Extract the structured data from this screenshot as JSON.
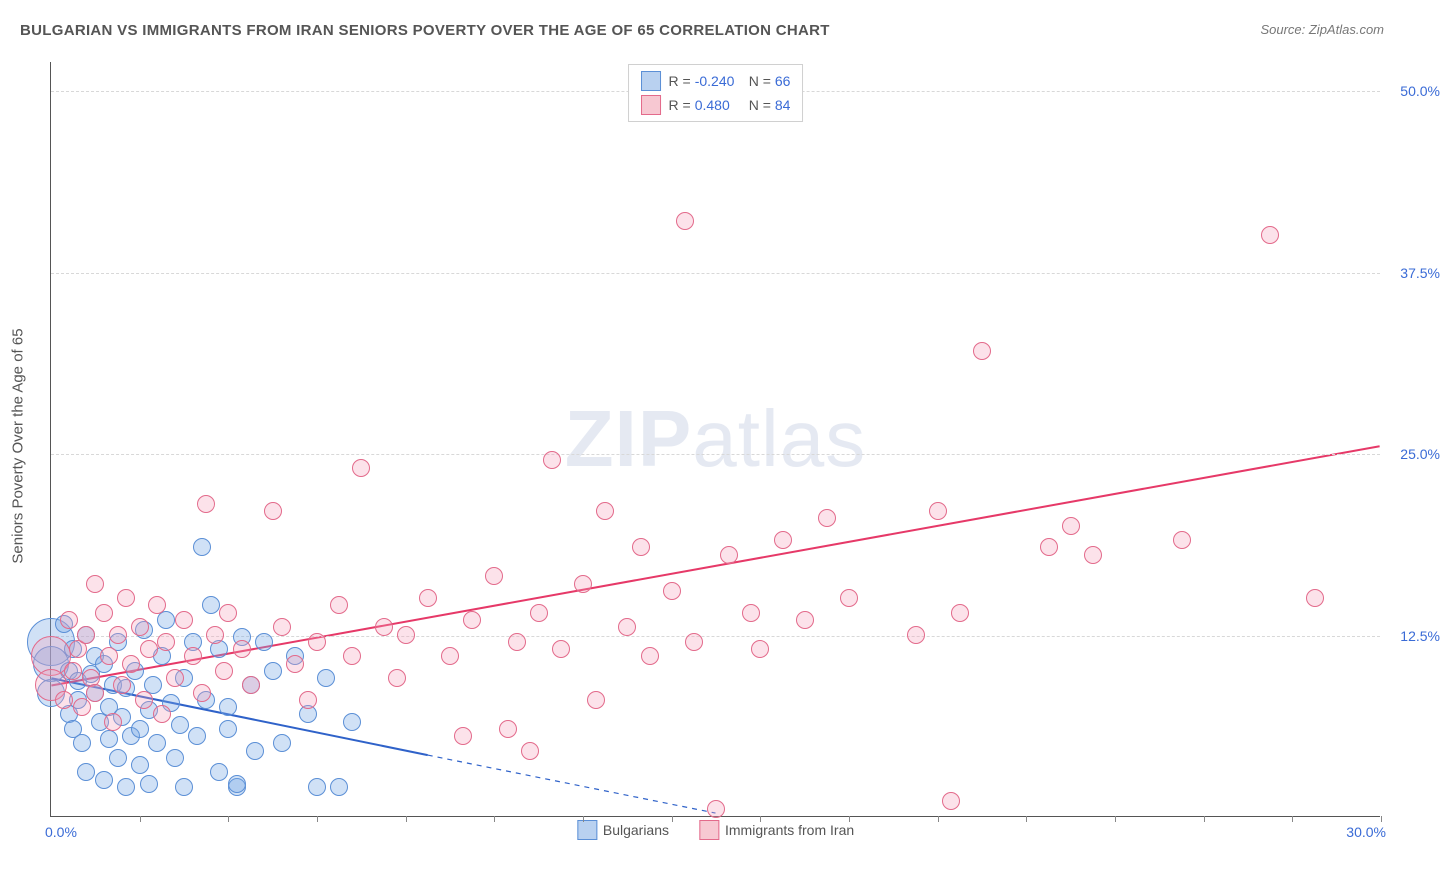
{
  "title": "BULGARIAN VS IMMIGRANTS FROM IRAN SENIORS POVERTY OVER THE AGE OF 65 CORRELATION CHART",
  "source": "Source: ZipAtlas.com",
  "ylabel": "Seniors Poverty Over the Age of 65",
  "watermark_a": "ZIP",
  "watermark_b": "atlas",
  "chart": {
    "type": "scatter",
    "xlim": [
      0,
      30
    ],
    "ylim": [
      0,
      52
    ],
    "x_tick_zero": "0.0%",
    "x_tick_max": "30.0%",
    "x_minor_ticks": [
      2,
      4,
      6,
      8,
      10,
      12,
      14,
      16,
      18,
      20,
      22,
      24,
      26,
      28,
      30
    ],
    "y_gridlines": [
      {
        "v": 12.5,
        "label": "12.5%"
      },
      {
        "v": 25.0,
        "label": "25.0%"
      },
      {
        "v": 37.5,
        "label": "37.5%"
      },
      {
        "v": 50.0,
        "label": "50.0%"
      }
    ],
    "marker_radius": 9,
    "marker_border_width": 1.5,
    "trend_line_width": 2,
    "legend_corr": [
      {
        "swatch_fill": "#b9d1f0",
        "swatch_border": "#5b8fd6",
        "r_label": "R =",
        "r": "-0.240",
        "n_label": "N =",
        "n": "66"
      },
      {
        "swatch_fill": "#f7c8d2",
        "swatch_border": "#e36a8b",
        "r_label": "R =",
        "r": " 0.480",
        "n_label": "N =",
        "n": "84"
      }
    ],
    "legend_bottom": [
      {
        "swatch_fill": "#b9d1f0",
        "swatch_border": "#5b8fd6",
        "label": "Bulgarians"
      },
      {
        "swatch_fill": "#f7c8d2",
        "swatch_border": "#e36a8b",
        "label": "Immigrants from Iran"
      }
    ],
    "series": [
      {
        "name": "Bulgarians",
        "fill": "rgba(120,170,230,0.35)",
        "border": "#5b8fd6",
        "trend_color": "#2f62c9",
        "trend": {
          "x1": 0,
          "y1": 9.5,
          "x2_solid": 8.5,
          "y2_solid": 4.2,
          "x2_dash": 15,
          "y2_dash": 0.2
        },
        "points": [
          [
            0.0,
            12.0,
            24
          ],
          [
            0.0,
            10.5,
            18
          ],
          [
            0.0,
            8.5,
            14
          ],
          [
            0.3,
            13.2
          ],
          [
            0.4,
            7.0
          ],
          [
            0.4,
            10.0
          ],
          [
            0.5,
            11.5
          ],
          [
            0.5,
            6.0
          ],
          [
            0.6,
            8.0
          ],
          [
            0.6,
            9.3
          ],
          [
            0.7,
            5.0
          ],
          [
            0.8,
            12.5
          ],
          [
            0.8,
            3.0
          ],
          [
            0.9,
            9.8
          ],
          [
            1.0,
            8.5
          ],
          [
            1.0,
            11.0
          ],
          [
            1.1,
            6.5
          ],
          [
            1.2,
            2.5
          ],
          [
            1.2,
            10.5
          ],
          [
            1.3,
            5.3
          ],
          [
            1.3,
            7.5
          ],
          [
            1.4,
            9.0
          ],
          [
            1.5,
            4.0
          ],
          [
            1.5,
            12.0
          ],
          [
            1.6,
            6.8
          ],
          [
            1.7,
            2.0
          ],
          [
            1.7,
            8.8
          ],
          [
            1.8,
            5.5
          ],
          [
            1.9,
            10.0
          ],
          [
            2.0,
            6.0
          ],
          [
            2.0,
            3.5
          ],
          [
            2.1,
            12.8
          ],
          [
            2.2,
            7.3
          ],
          [
            2.2,
            2.2
          ],
          [
            2.3,
            9.0
          ],
          [
            2.4,
            5.0
          ],
          [
            2.5,
            11.0
          ],
          [
            2.6,
            13.5
          ],
          [
            2.7,
            7.8
          ],
          [
            2.8,
            4.0
          ],
          [
            2.9,
            6.3
          ],
          [
            3.0,
            9.5
          ],
          [
            3.0,
            2.0
          ],
          [
            3.2,
            12.0
          ],
          [
            3.3,
            5.5
          ],
          [
            3.4,
            18.5
          ],
          [
            3.5,
            8.0
          ],
          [
            3.6,
            14.5
          ],
          [
            3.8,
            11.5
          ],
          [
            3.8,
            3.0
          ],
          [
            4.0,
            6.0
          ],
          [
            4.0,
            7.5
          ],
          [
            4.2,
            2.0
          ],
          [
            4.2,
            2.2
          ],
          [
            4.3,
            12.3
          ],
          [
            4.5,
            9.0
          ],
          [
            4.6,
            4.5
          ],
          [
            4.8,
            12.0
          ],
          [
            5.0,
            10.0
          ],
          [
            5.2,
            5.0
          ],
          [
            5.5,
            11.0
          ],
          [
            5.8,
            7.0
          ],
          [
            6.0,
            2.0
          ],
          [
            6.2,
            9.5
          ],
          [
            6.5,
            2.0
          ],
          [
            6.8,
            6.5
          ]
        ]
      },
      {
        "name": "Immigrants from Iran",
        "fill": "rgba(245,160,185,0.30)",
        "border": "#e36a8b",
        "trend_color": "#e63968",
        "trend": {
          "x1": 0,
          "y1": 9.0,
          "x2_solid": 30,
          "y2_solid": 25.5,
          "x2_dash": 30,
          "y2_dash": 25.5
        },
        "points": [
          [
            0.0,
            11.0,
            20
          ],
          [
            0.0,
            9.0,
            16
          ],
          [
            0.3,
            8.0
          ],
          [
            0.4,
            13.5
          ],
          [
            0.5,
            10.0
          ],
          [
            0.6,
            11.5
          ],
          [
            0.7,
            7.5
          ],
          [
            0.8,
            12.5
          ],
          [
            0.9,
            9.5
          ],
          [
            1.0,
            16.0
          ],
          [
            1.0,
            8.5
          ],
          [
            1.2,
            14.0
          ],
          [
            1.3,
            11.0
          ],
          [
            1.4,
            6.5
          ],
          [
            1.5,
            12.5
          ],
          [
            1.6,
            9.0
          ],
          [
            1.7,
            15.0
          ],
          [
            1.8,
            10.5
          ],
          [
            2.0,
            13.0
          ],
          [
            2.1,
            8.0
          ],
          [
            2.2,
            11.5
          ],
          [
            2.4,
            14.5
          ],
          [
            2.5,
            7.0
          ],
          [
            2.6,
            12.0
          ],
          [
            2.8,
            9.5
          ],
          [
            3.0,
            13.5
          ],
          [
            3.2,
            11.0
          ],
          [
            3.4,
            8.5
          ],
          [
            3.5,
            21.5
          ],
          [
            3.7,
            12.5
          ],
          [
            3.9,
            10.0
          ],
          [
            4.0,
            14.0
          ],
          [
            4.3,
            11.5
          ],
          [
            4.5,
            9.0
          ],
          [
            5.0,
            21.0
          ],
          [
            5.2,
            13.0
          ],
          [
            5.5,
            10.5
          ],
          [
            5.8,
            8.0
          ],
          [
            6.0,
            12.0
          ],
          [
            6.5,
            14.5
          ],
          [
            6.8,
            11.0
          ],
          [
            7.0,
            24.0
          ],
          [
            7.5,
            13.0
          ],
          [
            7.8,
            9.5
          ],
          [
            8.0,
            12.5
          ],
          [
            8.5,
            15.0
          ],
          [
            9.0,
            11.0
          ],
          [
            9.3,
            5.5
          ],
          [
            9.5,
            13.5
          ],
          [
            10.0,
            16.5
          ],
          [
            10.3,
            6.0
          ],
          [
            10.5,
            12.0
          ],
          [
            10.8,
            4.5
          ],
          [
            11.0,
            14.0
          ],
          [
            11.3,
            24.5
          ],
          [
            11.5,
            11.5
          ],
          [
            12.0,
            16.0
          ],
          [
            12.3,
            8.0
          ],
          [
            12.5,
            21.0
          ],
          [
            13.0,
            13.0
          ],
          [
            13.3,
            18.5
          ],
          [
            13.5,
            11.0
          ],
          [
            14.0,
            15.5
          ],
          [
            14.3,
            41.0
          ],
          [
            14.5,
            12.0
          ],
          [
            15.0,
            0.5
          ],
          [
            15.3,
            18.0
          ],
          [
            15.8,
            14.0
          ],
          [
            16.0,
            11.5
          ],
          [
            16.5,
            19.0
          ],
          [
            17.0,
            13.5
          ],
          [
            17.5,
            20.5
          ],
          [
            18.0,
            15.0
          ],
          [
            19.5,
            12.5
          ],
          [
            20.0,
            21.0
          ],
          [
            20.3,
            1.0
          ],
          [
            20.5,
            14.0
          ],
          [
            21.0,
            32.0
          ],
          [
            22.5,
            18.5
          ],
          [
            23.0,
            20.0
          ],
          [
            23.5,
            18.0
          ],
          [
            25.5,
            19.0
          ],
          [
            27.5,
            40.0
          ],
          [
            28.5,
            15.0
          ]
        ]
      }
    ]
  }
}
